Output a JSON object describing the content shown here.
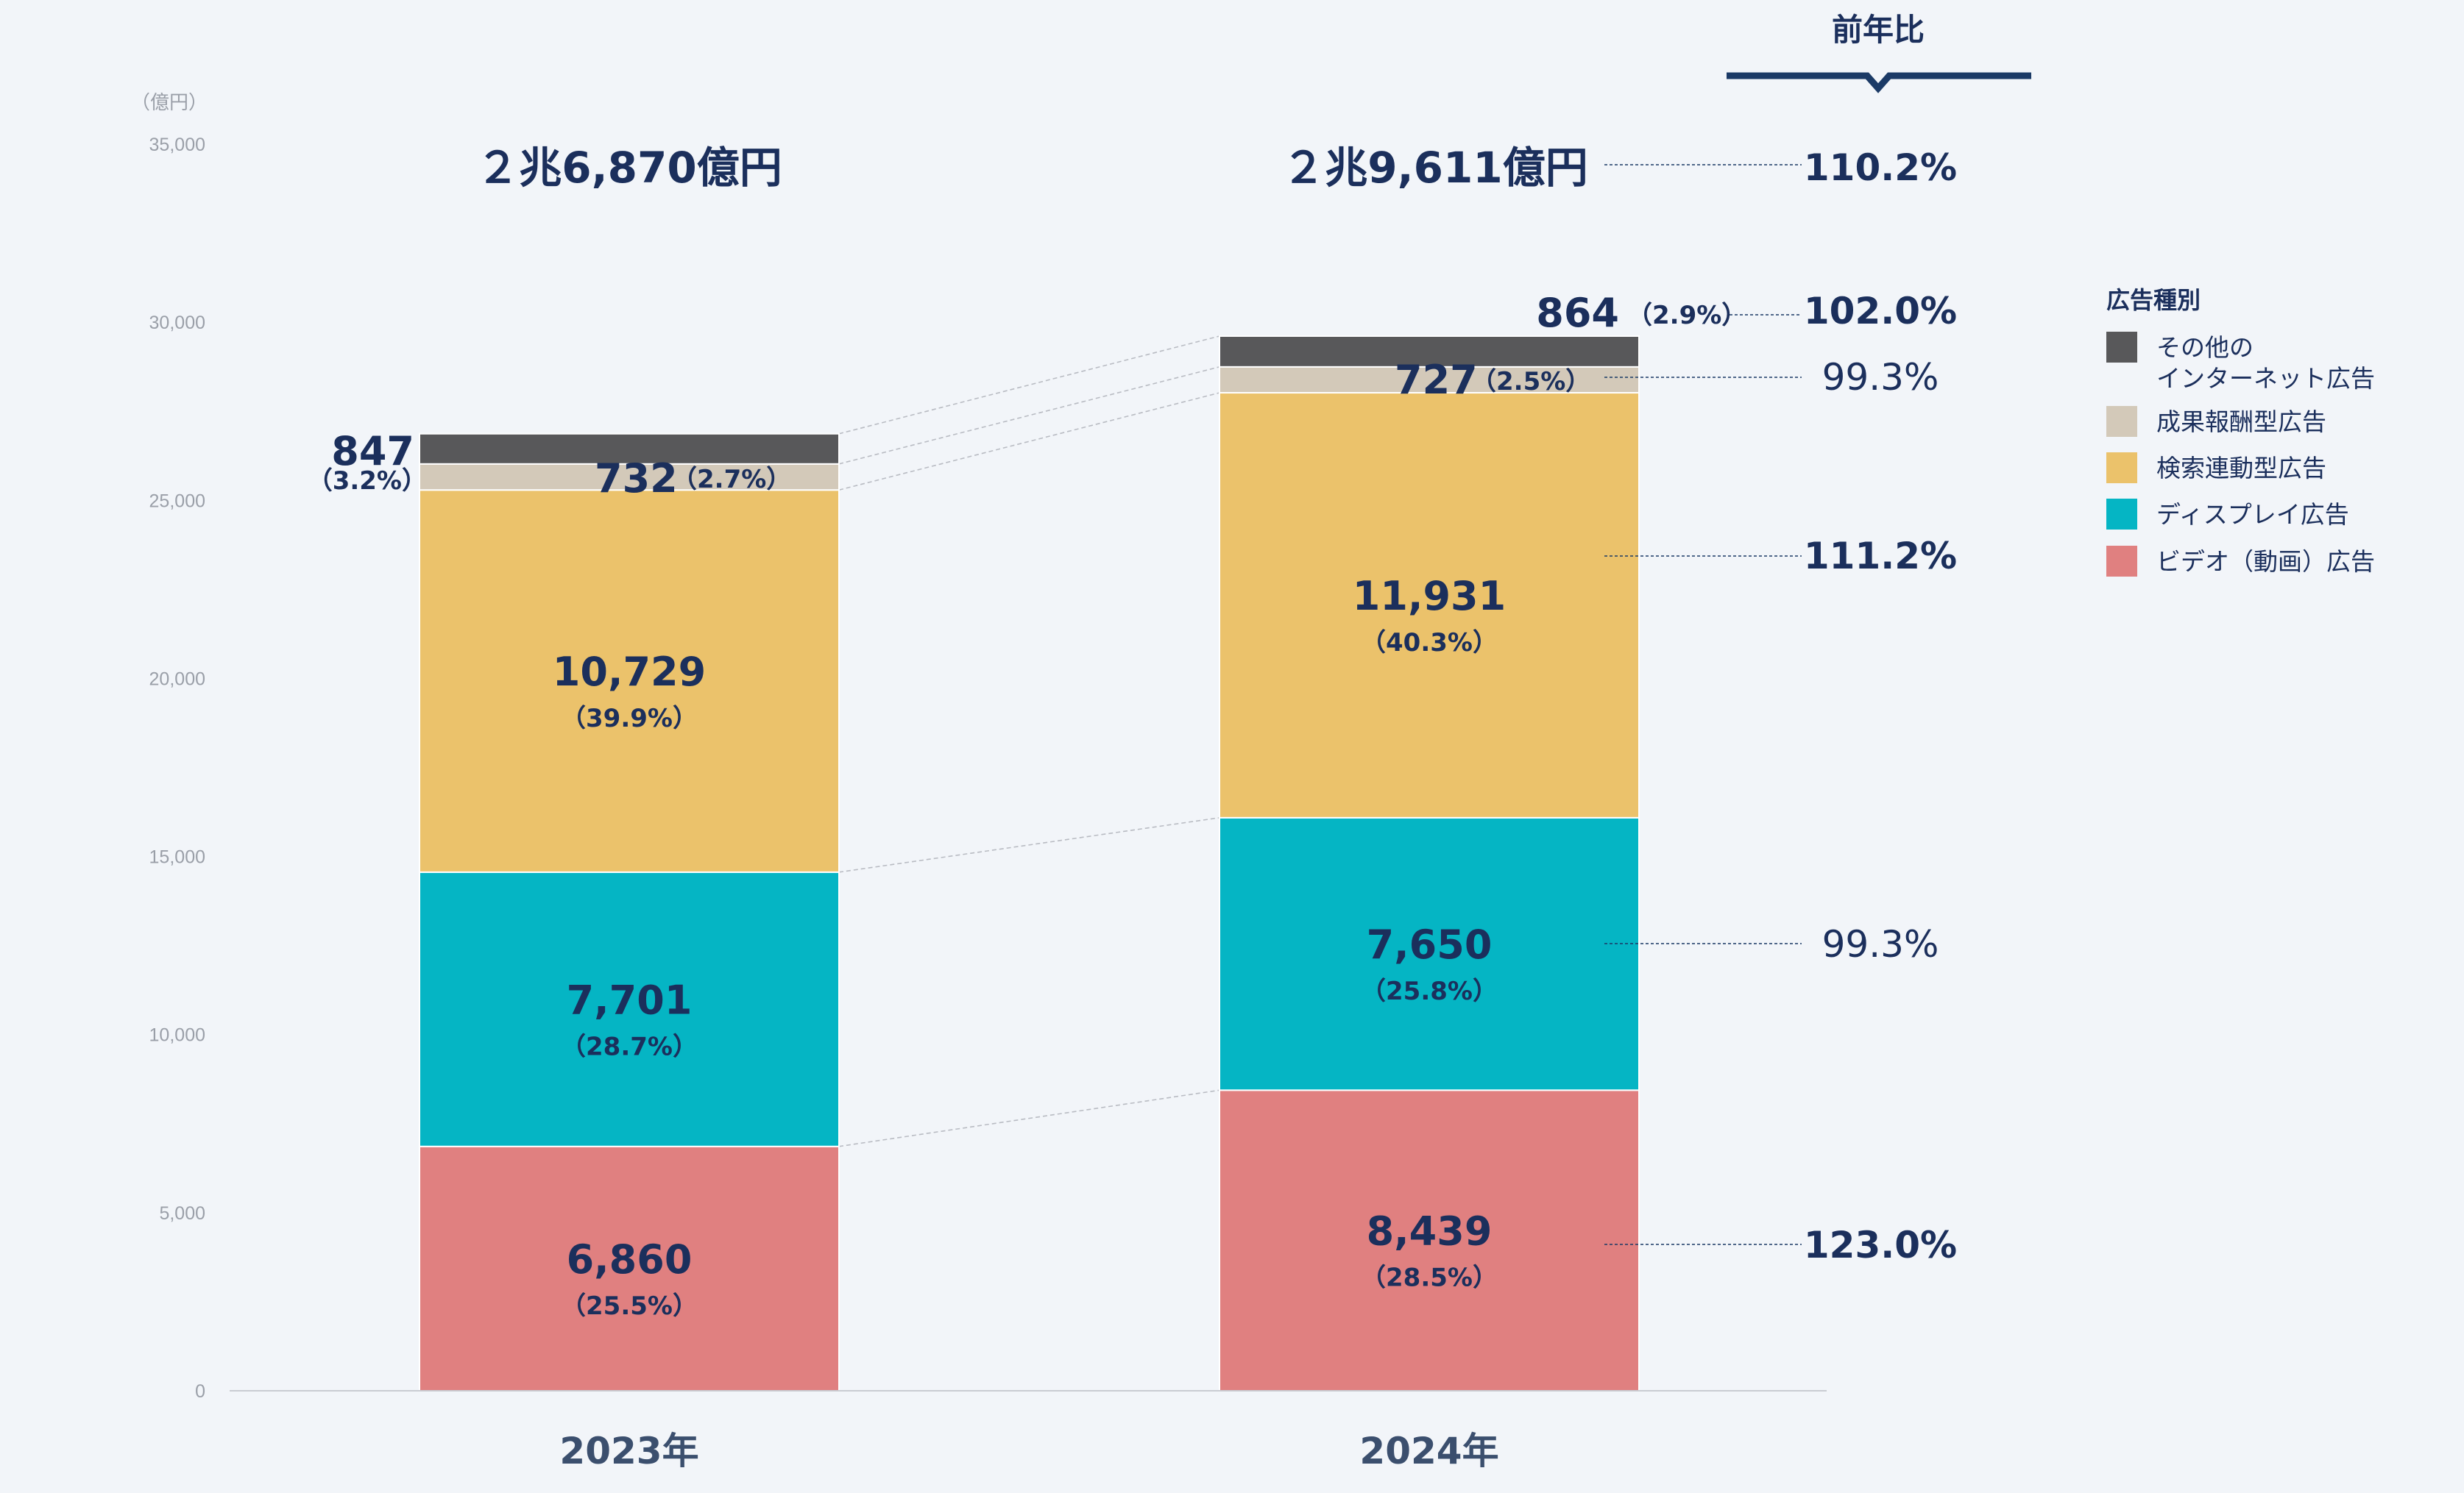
{
  "chart_data": {
    "type": "bar",
    "stacked": true,
    "unit_label": "（億円）",
    "categories": [
      "2023年",
      "2024年"
    ],
    "ylim": [
      0,
      35000
    ],
    "y_ticks": [
      "0",
      "5,000",
      "10,000",
      "15,000",
      "20,000",
      "25,000",
      "30,000",
      "35,000"
    ],
    "totals": [
      "２兆6,870億円",
      "２兆9,611億円"
    ],
    "series": [
      {
        "name": "ビデオ（動画）広告",
        "color": "#e08080",
        "values": [
          6860,
          8439
        ],
        "labels": [
          "6,860",
          "8,439"
        ],
        "shares": [
          "（25.5%）",
          "（28.5%）"
        ],
        "yoy": "123.0%",
        "yoy_bold": true
      },
      {
        "name": "ディスプレイ広告",
        "color": "#05b5c4",
        "values": [
          7701,
          7650
        ],
        "labels": [
          "7,701",
          "7,650"
        ],
        "shares": [
          "（28.7%）",
          "（25.8%）"
        ],
        "yoy": "99.3%",
        "yoy_bold": false
      },
      {
        "name": "検索連動型広告",
        "color": "#ebc26b",
        "values": [
          10729,
          11931
        ],
        "labels": [
          "10,729",
          "11,931"
        ],
        "shares": [
          "（39.9%）",
          "（40.3%）"
        ],
        "yoy": "111.2%",
        "yoy_bold": true
      },
      {
        "name": "成果報酬型広告",
        "color": "#d3c9b9",
        "values": [
          732,
          727
        ],
        "labels": [
          "732",
          "727"
        ],
        "shares": [
          "（2.7%）",
          "（2.5%）"
        ],
        "yoy": "99.3%",
        "yoy_bold": false
      },
      {
        "name": "その他のインターネット広告",
        "name_lines": [
          "その他の",
          "インターネット広告"
        ],
        "color": "#58585a",
        "values": [
          847,
          864
        ],
        "labels": [
          "847",
          "864"
        ],
        "shares": [
          "（3.2%）",
          "（2.9%）"
        ],
        "yoy": "102.0%",
        "yoy_bold": true
      }
    ],
    "yoy_header": "前年比",
    "total_yoy": "110.2%",
    "legend_title": "広告種別",
    "legend_position": "right",
    "grid": false
  }
}
